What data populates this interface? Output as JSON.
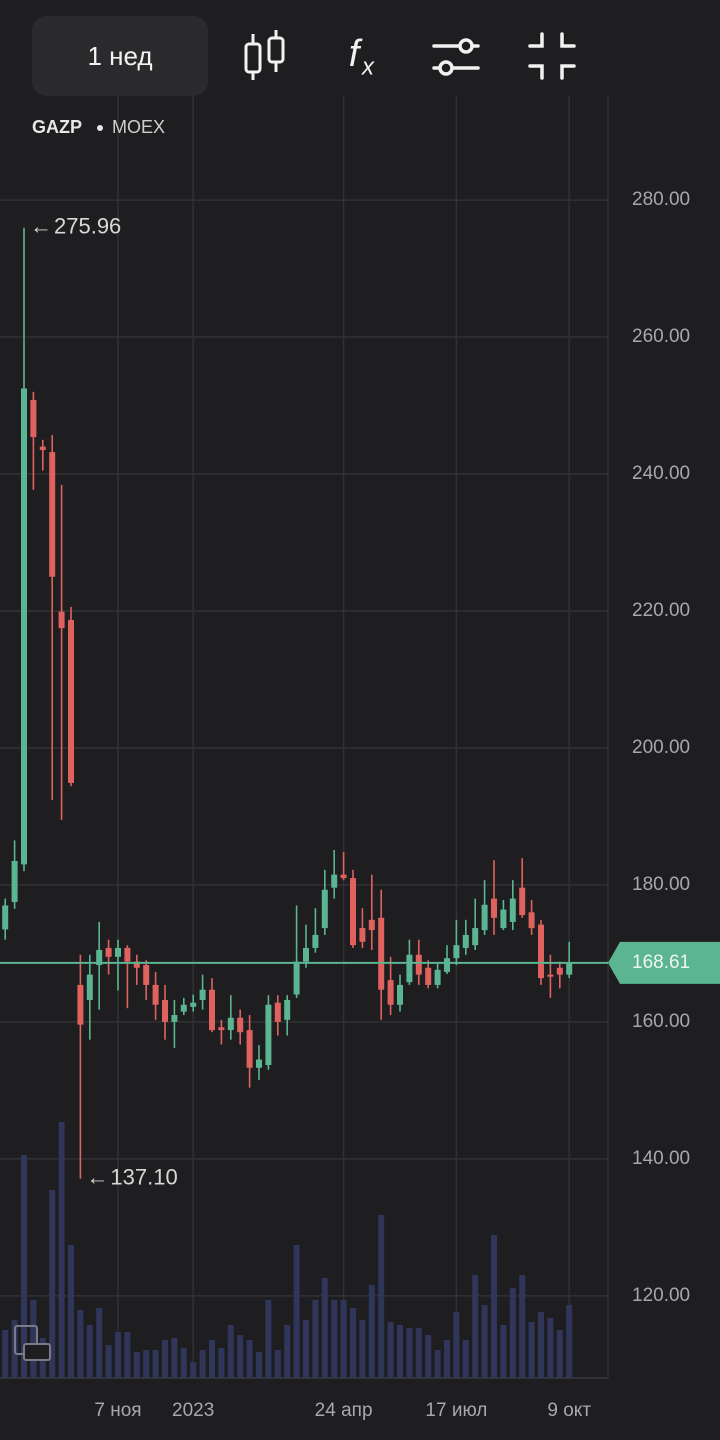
{
  "toolbar": {
    "interval": "1 нед",
    "indicator_icon": "f",
    "indicator_sub": "x"
  },
  "chart_data": {
    "type": "candlestick",
    "ticker": "GAZP",
    "exchange": "MOEX",
    "up_color": "#5cb592",
    "down_color": "#e0625f",
    "volume_color": "#30365a",
    "grid": true,
    "ylim": [
      108,
      295.2
    ],
    "yticks": [
      {
        "value": 120,
        "label": "120.00"
      },
      {
        "value": 140,
        "label": "140.00"
      },
      {
        "value": 160,
        "label": "160.00"
      },
      {
        "value": 180,
        "label": "180.00"
      },
      {
        "value": 200,
        "label": "200.00"
      },
      {
        "value": 220,
        "label": "220.00"
      },
      {
        "value": 240,
        "label": "240.00"
      },
      {
        "value": 260,
        "label": "260.00"
      },
      {
        "value": 280,
        "label": "280.00"
      }
    ],
    "categories": [
      null,
      null,
      null,
      null,
      null,
      null,
      null,
      null,
      null,
      null,
      null,
      null,
      "7 ноя",
      null,
      null,
      null,
      null,
      null,
      null,
      null,
      "2023",
      null,
      null,
      null,
      null,
      null,
      null,
      null,
      null,
      null,
      null,
      null,
      null,
      null,
      null,
      null,
      "24 апр",
      null,
      null,
      null,
      null,
      null,
      null,
      null,
      null,
      null,
      null,
      null,
      "17 июл",
      null,
      null,
      null,
      null,
      null,
      null,
      null,
      null,
      null,
      null,
      null,
      "9 окт"
    ],
    "open": [
      173.5,
      177.5,
      183,
      250.8,
      244,
      243.2,
      219.9,
      218.7,
      165.4,
      163.2,
      168.3,
      170.8,
      169.5,
      170.8,
      168.8,
      168.3,
      165.4,
      163.2,
      160,
      161.5,
      162.2,
      163.2,
      164.7,
      159.2,
      158.8,
      160.6,
      158.8,
      153.3,
      153.7,
      162.8,
      160.3,
      164,
      168.8,
      170.8,
      173.7,
      179.6,
      181.5,
      181,
      173.7,
      174.9,
      175.2,
      166.1,
      162.5,
      165.8,
      169.8,
      167.9,
      165.4,
      167.3,
      169.3,
      170.8,
      171.2,
      173.4,
      178,
      173.7,
      174.6,
      179.6,
      176,
      174.2,
      166.9,
      167.9,
      166.9
    ],
    "high": [
      178,
      186.5,
      275.96,
      252,
      245,
      245.7,
      238.4,
      220.6,
      169.8,
      169.8,
      174.6,
      172,
      172,
      171.2,
      169.8,
      169,
      167.3,
      165.4,
      163.2,
      163.5,
      164,
      166.9,
      166.4,
      160.3,
      163.9,
      161.8,
      161,
      156.6,
      163.9,
      163.9,
      163.9,
      177,
      174.2,
      176.6,
      182.2,
      185.1,
      184.8,
      182.2,
      176.6,
      181.5,
      179.3,
      169.5,
      166.9,
      172,
      172,
      169,
      168.5,
      171.2,
      174.9,
      174.9,
      178,
      180.7,
      183.6,
      177.8,
      180.7,
      183.9,
      177.8,
      174.9,
      169.8,
      168.8,
      171.7
    ],
    "low": [
      172,
      176.5,
      182,
      237.7,
      240.5,
      192.4,
      189.5,
      194.4,
      137.1,
      157.4,
      161.8,
      166.9,
      164.6,
      162,
      165.4,
      163.2,
      160.3,
      157.4,
      156.2,
      161,
      161.5,
      161.8,
      158.5,
      156.7,
      157.4,
      156.7,
      150.4,
      151.5,
      153,
      158,
      158,
      163.5,
      167.9,
      170.1,
      172.7,
      178,
      180.7,
      170.8,
      170.8,
      170.5,
      160.3,
      161,
      161.5,
      165.4,
      165.4,
      164.9,
      164.9,
      167,
      168.3,
      169.8,
      170.5,
      172.7,
      172.7,
      173.4,
      173.4,
      175.2,
      172.7,
      165.4,
      163.5,
      164.9,
      166.4
    ],
    "close": [
      177,
      183.5,
      252.5,
      245.4,
      243.5,
      225,
      217.5,
      194.9,
      159.6,
      166.9,
      170.5,
      169.5,
      170.8,
      168.8,
      167.9,
      165.4,
      162.5,
      160,
      161,
      162.5,
      162.8,
      164.7,
      158.8,
      158.8,
      160.6,
      158.5,
      153.3,
      154.5,
      162.5,
      160,
      163.2,
      168.8,
      170.8,
      172.7,
      179.3,
      181.5,
      181,
      171.2,
      171.7,
      173.4,
      164.7,
      162.5,
      165.4,
      169.8,
      166.9,
      165.4,
      167.6,
      169.3,
      171.2,
      172.7,
      173.7,
      177.1,
      175.2,
      176.4,
      178,
      175.6,
      173.7,
      166.4,
      166.6,
      166.9,
      168.61
    ],
    "volume": [
      48,
      58,
      223,
      78,
      40,
      188,
      256,
      133,
      68,
      53,
      70,
      33,
      46,
      46,
      26,
      28,
      28,
      38,
      40,
      30,
      16,
      28,
      38,
      30,
      53,
      43,
      38,
      26,
      78,
      28,
      53,
      133,
      58,
      78,
      100,
      78,
      78,
      70,
      58,
      93,
      163,
      56,
      53,
      50,
      50,
      43,
      28,
      38,
      66,
      38,
      103,
      73,
      143,
      53,
      90,
      103,
      56,
      66,
      60,
      48,
      73
    ],
    "annotations": [
      {
        "text": "275.96"
      },
      {
        "text": "137.10"
      }
    ],
    "last_price_label": "168.61"
  }
}
